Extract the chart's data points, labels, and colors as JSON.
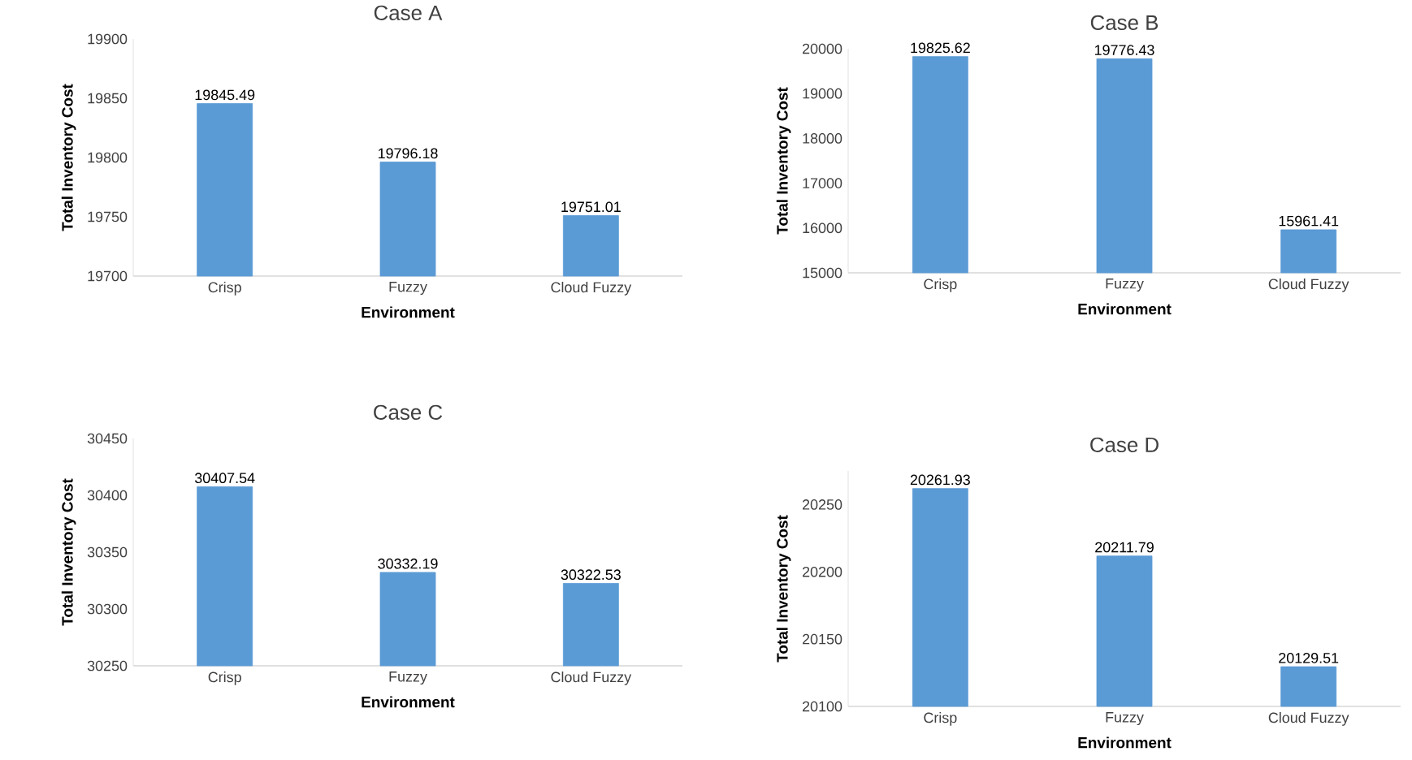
{
  "chart_data": [
    {
      "type": "bar",
      "title": "Case A",
      "xlabel": "Environment",
      "ylabel": "Total Inventory Cost",
      "categories": [
        "Crisp",
        "Fuzzy",
        "Cloud Fuzzy"
      ],
      "values": [
        19845.49,
        19796.18,
        19751.01
      ],
      "color": "#5b9bd5",
      "ylim": [
        19700,
        19900
      ],
      "yticks": [
        19700,
        19750,
        19800,
        19850,
        19900
      ],
      "data_labels": true,
      "grid": false
    },
    {
      "type": "bar",
      "title": "Case B",
      "xlabel": "Environment",
      "ylabel": "Total Inventory Cost",
      "categories": [
        "Crisp",
        "Fuzzy",
        "Cloud Fuzzy"
      ],
      "values": [
        19825.62,
        19776.43,
        15961.41
      ],
      "color": "#5b9bd5",
      "ylim": [
        15000,
        20000
      ],
      "yticks": [
        15000,
        16000,
        17000,
        18000,
        19000,
        20000
      ],
      "data_labels": true,
      "grid": false
    },
    {
      "type": "bar",
      "title": "Case C",
      "xlabel": "Environment",
      "ylabel": "Total Inventory Cost",
      "categories": [
        "Crisp",
        "Fuzzy",
        "Cloud Fuzzy"
      ],
      "values": [
        30407.54,
        30332.19,
        30322.53
      ],
      "color": "#5b9bd5",
      "ylim": [
        30250,
        30450
      ],
      "yticks": [
        30250,
        30300,
        30350,
        30400,
        30450
      ],
      "data_labels": true,
      "grid": false
    },
    {
      "type": "bar",
      "title": "Case D",
      "xlabel": "Environment",
      "ylabel": "Total Inventory Cost",
      "categories": [
        "Crisp",
        "Fuzzy",
        "Cloud Fuzzy"
      ],
      "values": [
        20261.93,
        20211.79,
        20129.51
      ],
      "color": "#5b9bd5",
      "ylim": [
        20100,
        20275
      ],
      "yticks": [
        20100,
        20150,
        20200,
        20250
      ],
      "data_labels": true,
      "grid": false
    }
  ]
}
